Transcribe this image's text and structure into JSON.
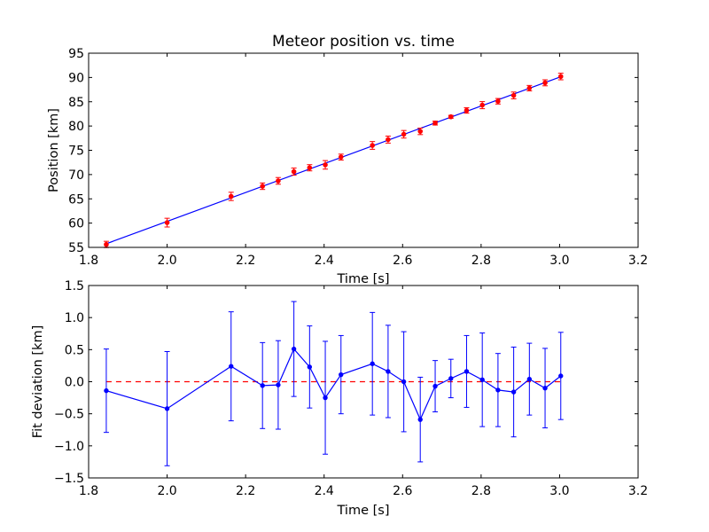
{
  "chart_data": [
    {
      "type": "scatter",
      "title": "Meteor position vs. time",
      "xlabel": "Time [s]",
      "ylabel": "Position [km]",
      "xlim": [
        1.8,
        3.2
      ],
      "ylim": [
        55,
        95
      ],
      "xticks": [
        "1.8",
        "2.0",
        "2.2",
        "2.4",
        "2.6",
        "2.8",
        "3.0",
        "3.2"
      ],
      "yticks": [
        "55",
        "60",
        "65",
        "70",
        "75",
        "80",
        "85",
        "90",
        "95"
      ],
      "grid": false,
      "colors": {
        "points": "#ff0000",
        "errorbars": "#ff0000",
        "fit": "#0000ff"
      },
      "series": [
        {
          "kind": "measurements-with-errorbars",
          "x": [
            1.845,
            2.0,
            2.163,
            2.243,
            2.283,
            2.323,
            2.363,
            2.403,
            2.443,
            2.523,
            2.563,
            2.603,
            2.645,
            2.683,
            2.723,
            2.763,
            2.803,
            2.843,
            2.883,
            2.923,
            2.963,
            3.003
          ],
          "y": [
            55.6,
            60.1,
            65.5,
            67.6,
            68.7,
            70.6,
            71.4,
            72.0,
            73.6,
            76.0,
            77.2,
            78.3,
            78.9,
            80.6,
            81.9,
            83.2,
            84.3,
            85.1,
            86.3,
            87.8,
            88.9,
            90.2
          ],
          "yerr": [
            0.65,
            0.9,
            0.85,
            0.67,
            0.69,
            0.74,
            0.64,
            0.88,
            0.61,
            0.8,
            0.72,
            0.78,
            0.67,
            0.4,
            0.3,
            0.56,
            0.73,
            0.57,
            0.7,
            0.56,
            0.62,
            0.68
          ]
        },
        {
          "kind": "fit-line",
          "x": [
            1.845,
            3.003
          ],
          "y": [
            55.75,
            90.15
          ]
        }
      ]
    },
    {
      "type": "line",
      "title": "",
      "xlabel": "Time [s]",
      "ylabel": "Fit deviation [km]",
      "xlim": [
        1.8,
        3.2
      ],
      "ylim": [
        -1.5,
        1.5
      ],
      "xticks": [
        "1.8",
        "2.0",
        "2.2",
        "2.4",
        "2.6",
        "2.8",
        "3.0",
        "3.2"
      ],
      "yticks": [
        "−1.5",
        "−1.0",
        "−0.5",
        "0.0",
        "0.5",
        "1.0",
        "1.5"
      ],
      "grid": false,
      "colors": {
        "line": "#0000ff",
        "zero": "#ff0000"
      },
      "series": [
        {
          "kind": "residuals-with-errorbars",
          "x": [
            1.845,
            2.0,
            2.163,
            2.243,
            2.283,
            2.323,
            2.363,
            2.403,
            2.443,
            2.523,
            2.563,
            2.603,
            2.645,
            2.683,
            2.723,
            2.763,
            2.803,
            2.843,
            2.883,
            2.923,
            2.963,
            3.003
          ],
          "y": [
            -0.14,
            -0.42,
            0.24,
            -0.06,
            -0.05,
            0.51,
            0.23,
            -0.25,
            0.11,
            0.28,
            0.16,
            0.0,
            -0.59,
            -0.07,
            0.05,
            0.16,
            0.03,
            -0.13,
            -0.16,
            0.04,
            -0.1,
            0.09
          ],
          "yerr": [
            0.65,
            0.89,
            0.85,
            0.67,
            0.69,
            0.74,
            0.64,
            0.88,
            0.61,
            0.8,
            0.72,
            0.78,
            0.66,
            0.4,
            0.3,
            0.56,
            0.73,
            0.57,
            0.7,
            0.56,
            0.62,
            0.68
          ]
        },
        {
          "kind": "zero-reference-dashed",
          "x": [
            1.845,
            3.003
          ],
          "y": [
            0,
            0
          ]
        }
      ]
    }
  ]
}
